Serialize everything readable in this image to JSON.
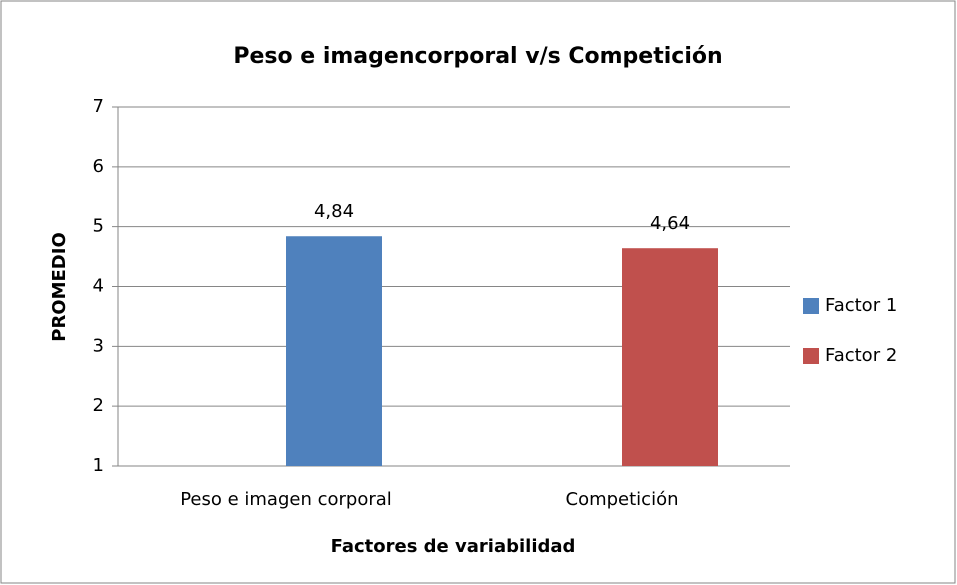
{
  "chart_data": {
    "type": "bar",
    "title": "Peso e imagencorporal v/s Competición",
    "x_label": "Factores de variabilidad",
    "y_label": "PROMEDIO",
    "categories": [
      "Peso e imagen corporal",
      "Competición"
    ],
    "series": [
      {
        "name": "Factor 1",
        "color": "#4f81bd",
        "values": [
          4.84,
          null
        ],
        "value_labels": [
          "4,84",
          null
        ]
      },
      {
        "name": "Factor 2",
        "color": "#c0504d",
        "values": [
          null,
          4.64
        ],
        "value_labels": [
          null,
          "4,64"
        ]
      }
    ],
    "ylim": [
      1,
      7
    ],
    "yticks": [
      1,
      2,
      3,
      4,
      5,
      6,
      7
    ],
    "grid": true,
    "legend": "right"
  }
}
